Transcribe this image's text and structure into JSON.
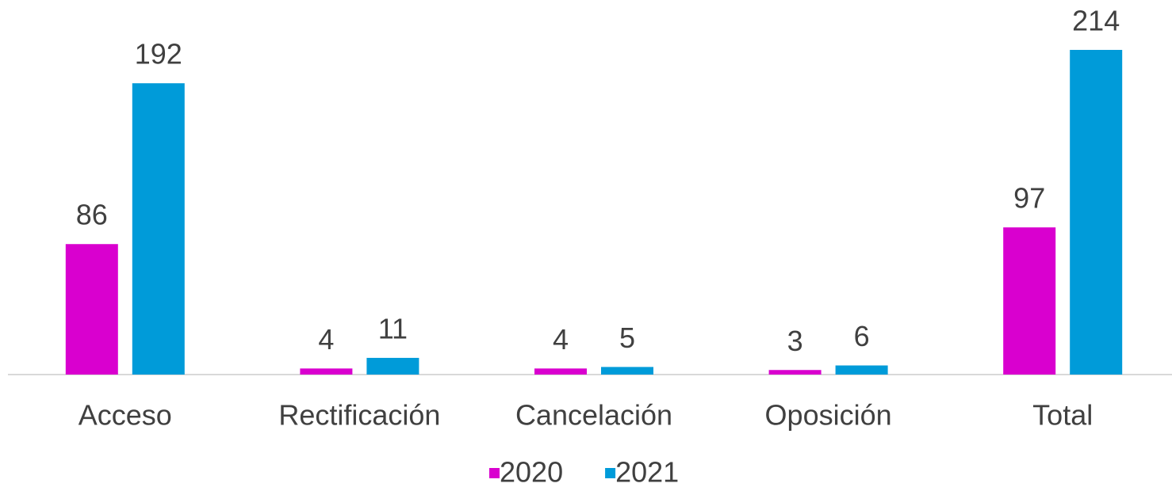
{
  "chart_data": {
    "type": "bar",
    "categories": [
      "Acceso",
      "Rectificación",
      "Cancelación",
      "Oposición",
      "Total"
    ],
    "series": [
      {
        "name": "2020",
        "color": "#d900cf",
        "values": [
          86,
          4,
          4,
          3,
          97
        ]
      },
      {
        "name": "2021",
        "color": "#009bd9",
        "values": [
          192,
          11,
          5,
          6,
          214
        ]
      }
    ],
    "legend": "bottom"
  }
}
